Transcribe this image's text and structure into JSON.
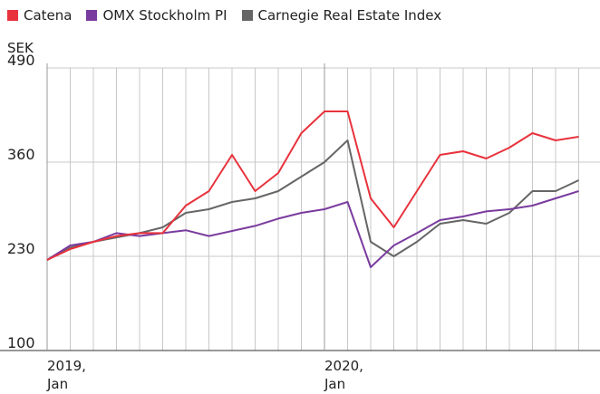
{
  "chart_data": {
    "type": "line",
    "y_label": "SEK",
    "x": [
      "2019-01",
      "2019-02",
      "2019-03",
      "2019-04",
      "2019-05",
      "2019-06",
      "2019-07",
      "2019-08",
      "2019-09",
      "2019-10",
      "2019-11",
      "2019-12",
      "2020-01",
      "2020-02",
      "2020-03",
      "2020-04",
      "2020-05",
      "2020-06",
      "2020-07",
      "2020-08",
      "2020-09",
      "2020-10",
      "2020-11",
      "2020-12"
    ],
    "series": [
      {
        "name": "Catena",
        "color": "#e8323c",
        "values": [
          225,
          240,
          250,
          258,
          262,
          262,
          300,
          320,
          370,
          320,
          345,
          400,
          430,
          430,
          310,
          270,
          320,
          370,
          375,
          365,
          380,
          400,
          390,
          395
        ]
      },
      {
        "name": "OMX Stockholm PI",
        "color": "#7a3b9e",
        "values": [
          225,
          245,
          250,
          262,
          258,
          262,
          266,
          258,
          265,
          272,
          282,
          290,
          295,
          305,
          215,
          245,
          262,
          280,
          285,
          292,
          295,
          300,
          310,
          320
        ]
      },
      {
        "name": "Carnegie Real Estate Index",
        "color": "#666666",
        "values": [
          225,
          242,
          250,
          256,
          262,
          270,
          290,
          295,
          305,
          310,
          320,
          340,
          360,
          390,
          250,
          230,
          250,
          275,
          280,
          275,
          290,
          320,
          320,
          335
        ]
      }
    ],
    "ylim": [
      100,
      490
    ],
    "yticks": [
      100,
      230,
      360,
      490
    ],
    "xticks": [
      {
        "value": "2019-01",
        "label": "2019, Jan"
      },
      {
        "value": "2020-01",
        "label": "2020, Jan"
      }
    ],
    "grid": true
  }
}
